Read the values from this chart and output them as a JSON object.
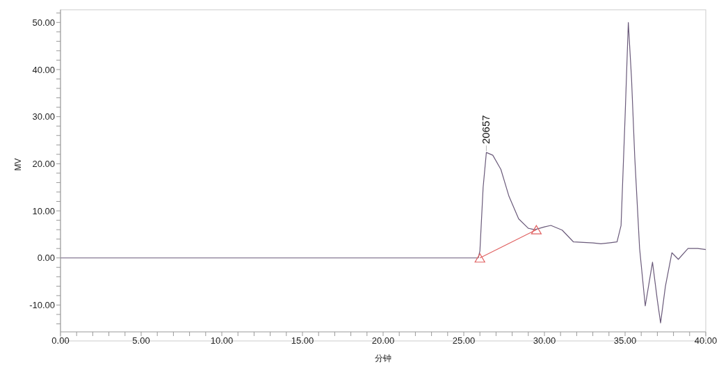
{
  "chart_data": {
    "type": "line",
    "xlabel": "分钟",
    "ylabel": "MV",
    "xlim": [
      0,
      40
    ],
    "ylim": [
      -15.7,
      52.7
    ],
    "xticks": [
      {
        "value": 0,
        "label": "0.00"
      },
      {
        "value": 1,
        "label": null
      },
      {
        "value": 2,
        "label": null
      },
      {
        "value": 3,
        "label": null
      },
      {
        "value": 4,
        "label": null
      },
      {
        "value": 5,
        "label": "5.00"
      },
      {
        "value": 6,
        "label": null
      },
      {
        "value": 7,
        "label": null
      },
      {
        "value": 8,
        "label": null
      },
      {
        "value": 9,
        "label": null
      },
      {
        "value": 10,
        "label": "10.00"
      },
      {
        "value": 11,
        "label": null
      },
      {
        "value": 12,
        "label": null
      },
      {
        "value": 13,
        "label": null
      },
      {
        "value": 14,
        "label": null
      },
      {
        "value": 15,
        "label": "15.00"
      },
      {
        "value": 16,
        "label": null
      },
      {
        "value": 17,
        "label": null
      },
      {
        "value": 18,
        "label": null
      },
      {
        "value": 19,
        "label": null
      },
      {
        "value": 20,
        "label": "20.00"
      },
      {
        "value": 21,
        "label": null
      },
      {
        "value": 22,
        "label": null
      },
      {
        "value": 23,
        "label": null
      },
      {
        "value": 24,
        "label": null
      },
      {
        "value": 25,
        "label": "25.00"
      },
      {
        "value": 26,
        "label": null
      },
      {
        "value": 27,
        "label": null
      },
      {
        "value": 28,
        "label": null
      },
      {
        "value": 29,
        "label": null
      },
      {
        "value": 30,
        "label": "30.00"
      },
      {
        "value": 31,
        "label": null
      },
      {
        "value": 32,
        "label": null
      },
      {
        "value": 33,
        "label": null
      },
      {
        "value": 34,
        "label": null
      },
      {
        "value": 35,
        "label": "35.00"
      },
      {
        "value": 36,
        "label": null
      },
      {
        "value": 37,
        "label": null
      },
      {
        "value": 38,
        "label": null
      },
      {
        "value": 39,
        "label": null
      },
      {
        "value": 40,
        "label": "40.00"
      }
    ],
    "yticks": [
      {
        "value": -14,
        "label": null
      },
      {
        "value": -12,
        "label": null
      },
      {
        "value": -10,
        "label": "-10.00"
      },
      {
        "value": -8,
        "label": null
      },
      {
        "value": -6,
        "label": null
      },
      {
        "value": -4,
        "label": null
      },
      {
        "value": -2,
        "label": null
      },
      {
        "value": 0,
        "label": "0.00"
      },
      {
        "value": 2,
        "label": null
      },
      {
        "value": 4,
        "label": null
      },
      {
        "value": 6,
        "label": null
      },
      {
        "value": 8,
        "label": null
      },
      {
        "value": 10,
        "label": "10.00"
      },
      {
        "value": 12,
        "label": null
      },
      {
        "value": 14,
        "label": null
      },
      {
        "value": 16,
        "label": null
      },
      {
        "value": 18,
        "label": null
      },
      {
        "value": 20,
        "label": "20.00"
      },
      {
        "value": 22,
        "label": null
      },
      {
        "value": 24,
        "label": null
      },
      {
        "value": 26,
        "label": null
      },
      {
        "value": 28,
        "label": null
      },
      {
        "value": 30,
        "label": "30.00"
      },
      {
        "value": 32,
        "label": null
      },
      {
        "value": 34,
        "label": null
      },
      {
        "value": 36,
        "label": null
      },
      {
        "value": 38,
        "label": null
      },
      {
        "value": 40,
        "label": "40.00"
      },
      {
        "value": 42,
        "label": null
      },
      {
        "value": 44,
        "label": null
      },
      {
        "value": 46,
        "label": null
      },
      {
        "value": 48,
        "label": null
      },
      {
        "value": 50,
        "label": "50.00"
      },
      {
        "value": 52,
        "label": null
      }
    ],
    "grid": false,
    "legend": false,
    "marker": "none",
    "line_style": "solid",
    "series": [
      {
        "color": "#6a5a7a",
        "x": [
          0,
          10,
          20,
          25.9,
          26.0,
          26.2,
          26.4,
          26.8,
          27.3,
          27.8,
          28.4,
          29.0,
          29.4,
          30.0,
          30.4,
          31.1,
          31.8,
          32.4,
          33.0,
          33.5,
          34.0,
          34.5,
          34.75,
          35.0,
          35.2,
          35.4,
          35.6,
          35.9,
          36.25,
          36.5,
          36.7,
          37.0,
          37.2,
          37.5,
          37.9,
          38.3,
          38.9,
          39.5,
          40
        ],
        "values": [
          0,
          0,
          0,
          0,
          1.5,
          15,
          22.4,
          21.8,
          18.8,
          13.1,
          8.3,
          6.3,
          6.0,
          6.6,
          6.9,
          5.9,
          3.4,
          3.3,
          3.2,
          3.0,
          3.2,
          3.4,
          6.9,
          30,
          50.0,
          38,
          21.3,
          2,
          -10.2,
          -5,
          -0.9,
          -9,
          -13.8,
          -6,
          1.1,
          -0.3,
          2.0,
          2.0,
          1.8
        ]
      },
      {
        "color": "#e06060",
        "marker": "triangle",
        "x": [
          26.0,
          29.5
        ],
        "values": [
          0,
          6.0
        ]
      }
    ],
    "annotations": [
      {
        "text": "20657",
        "x": 26.4,
        "y": 22.4
      }
    ]
  }
}
